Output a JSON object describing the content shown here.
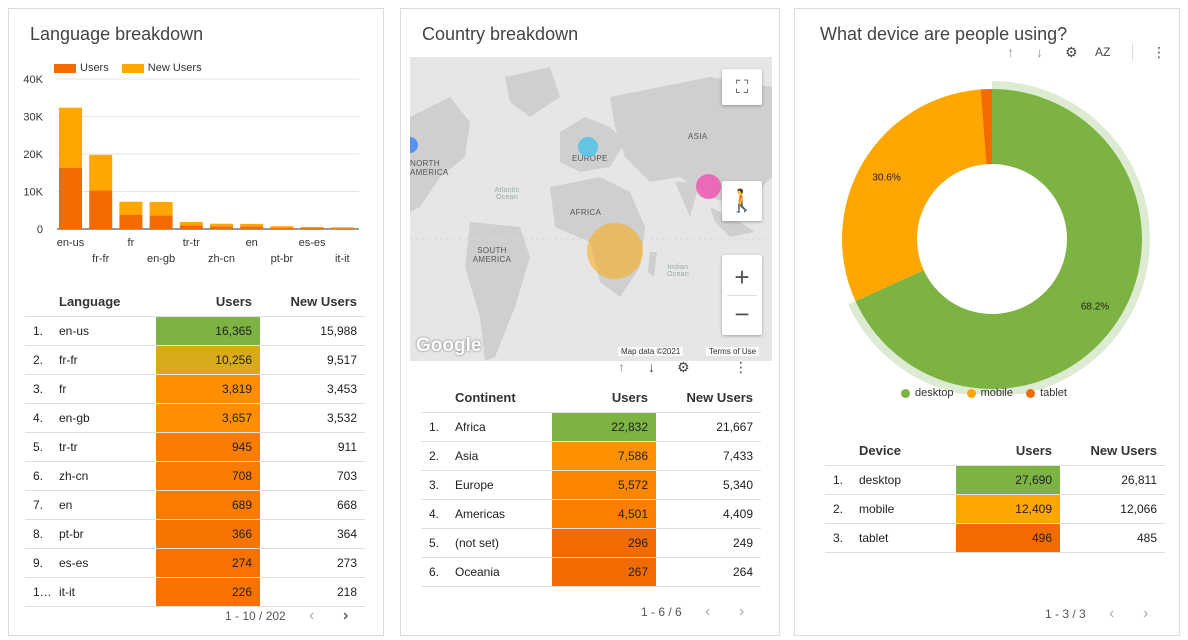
{
  "language_card": {
    "title": "Language breakdown",
    "legend": [
      "Users",
      "New Users"
    ],
    "colors": {
      "users": "#f26b00",
      "new_users": "#ffa600"
    },
    "chart_data": {
      "type": "bar",
      "stacked": true,
      "categories": [
        "en-us",
        "fr-fr",
        "fr",
        "en-gb",
        "tr-tr",
        "zh-cn",
        "en",
        "pt-br",
        "es-es",
        "it-it"
      ],
      "series": [
        {
          "name": "Users",
          "values": [
            16365,
            10256,
            3819,
            3657,
            945,
            708,
            689,
            366,
            274,
            226
          ]
        },
        {
          "name": "New Users",
          "values": [
            15988,
            9517,
            3453,
            3532,
            911,
            703,
            668,
            364,
            273,
            218
          ]
        }
      ],
      "yticks": [
        "40K",
        "30K",
        "20K",
        "10K",
        "0"
      ],
      "ylim": [
        0,
        40000
      ]
    },
    "table": {
      "headers": [
        "Language",
        "Users",
        "New Users"
      ],
      "rows": [
        {
          "idx": "1.",
          "name": "en-us",
          "users": "16,365",
          "new": "15,988",
          "color": "#7cb342"
        },
        {
          "idx": "2.",
          "name": "fr-fr",
          "users": "10,256",
          "new": "9,517",
          "color": "#d9a91c"
        },
        {
          "idx": "3.",
          "name": "fr",
          "users": "3,819",
          "new": "3,453",
          "color": "#ff8f00"
        },
        {
          "idx": "4.",
          "name": "en-gb",
          "users": "3,657",
          "new": "3,532",
          "color": "#ff8f00"
        },
        {
          "idx": "5.",
          "name": "tr-tr",
          "users": "945",
          "new": "911",
          "color": "#fb7c00"
        },
        {
          "idx": "6.",
          "name": "zh-cn",
          "users": "708",
          "new": "703",
          "color": "#fb7a00"
        },
        {
          "idx": "7.",
          "name": "en",
          "users": "689",
          "new": "668",
          "color": "#fb7a00"
        },
        {
          "idx": "8.",
          "name": "pt-br",
          "users": "366",
          "new": "364",
          "color": "#f87400"
        },
        {
          "idx": "9.",
          "name": "es-es",
          "users": "274",
          "new": "273",
          "color": "#f77200"
        },
        {
          "idx": "1…",
          "name": "it-it",
          "users": "226",
          "new": "218",
          "color": "#f77200"
        }
      ]
    },
    "pager": "1 - 10 / 202"
  },
  "country_card": {
    "title": "Country breakdown",
    "map": {
      "labels": [
        "ASIA",
        "EUROPE",
        "NORTH AMERICA",
        "AFRICA",
        "SOUTH AMERICA"
      ],
      "oceans": [
        "Atlantic Ocean",
        "Indian Ocean"
      ],
      "google": "Google",
      "attribution": "Map data ©2021",
      "terms": "Terms of Use",
      "fullscreen": "⛶",
      "zoom_in": "+",
      "zoom_out": "−"
    },
    "table": {
      "headers": [
        "Continent",
        "Users",
        "New Users"
      ],
      "rows": [
        {
          "idx": "1.",
          "name": "Africa",
          "users": "22,832",
          "new": "21,667",
          "color": "#7cb342"
        },
        {
          "idx": "2.",
          "name": "Asia",
          "users": "7,586",
          "new": "7,433",
          "color": "#ff9100"
        },
        {
          "idx": "3.",
          "name": "Europe",
          "users": "5,572",
          "new": "5,340",
          "color": "#fc8500"
        },
        {
          "idx": "4.",
          "name": "Americas",
          "users": "4,501",
          "new": "4,409",
          "color": "#fa7f00"
        },
        {
          "idx": "5.",
          "name": "(not set)",
          "users": "296",
          "new": "249",
          "color": "#f26b00"
        },
        {
          "idx": "6.",
          "name": "Oceania",
          "users": "267",
          "new": "264",
          "color": "#f26b00"
        }
      ]
    },
    "pager": "1 - 6 / 6"
  },
  "device_card": {
    "title": "What device are people using?",
    "chart_data": {
      "type": "pie",
      "donut": true,
      "labels": [
        "desktop",
        "mobile",
        "tablet"
      ],
      "values": [
        68.2,
        30.6,
        1.2
      ],
      "label_text": [
        "68.2%",
        "30.6%",
        ""
      ],
      "colors": [
        "#7cb342",
        "#ffa600",
        "#f26b00"
      ]
    },
    "legend": [
      "desktop",
      "mobile",
      "tablet"
    ],
    "table": {
      "headers": [
        "Device",
        "Users",
        "New Users"
      ],
      "rows": [
        {
          "idx": "1.",
          "name": "desktop",
          "users": "27,690",
          "new": "26,811",
          "color": "#7cb342"
        },
        {
          "idx": "2.",
          "name": "mobile",
          "users": "12,409",
          "new": "12,066",
          "color": "#ffa600"
        },
        {
          "idx": "3.",
          "name": "tablet",
          "users": "496",
          "new": "485",
          "color": "#f26b00"
        }
      ]
    },
    "pager": "1 - 3 / 3"
  },
  "icons": {
    "sort_up": "↑",
    "sort_down": "↓",
    "chart_settings": "⚙",
    "sort_az": "AZ",
    "more": "⋮",
    "prev": "‹",
    "next": "›"
  }
}
